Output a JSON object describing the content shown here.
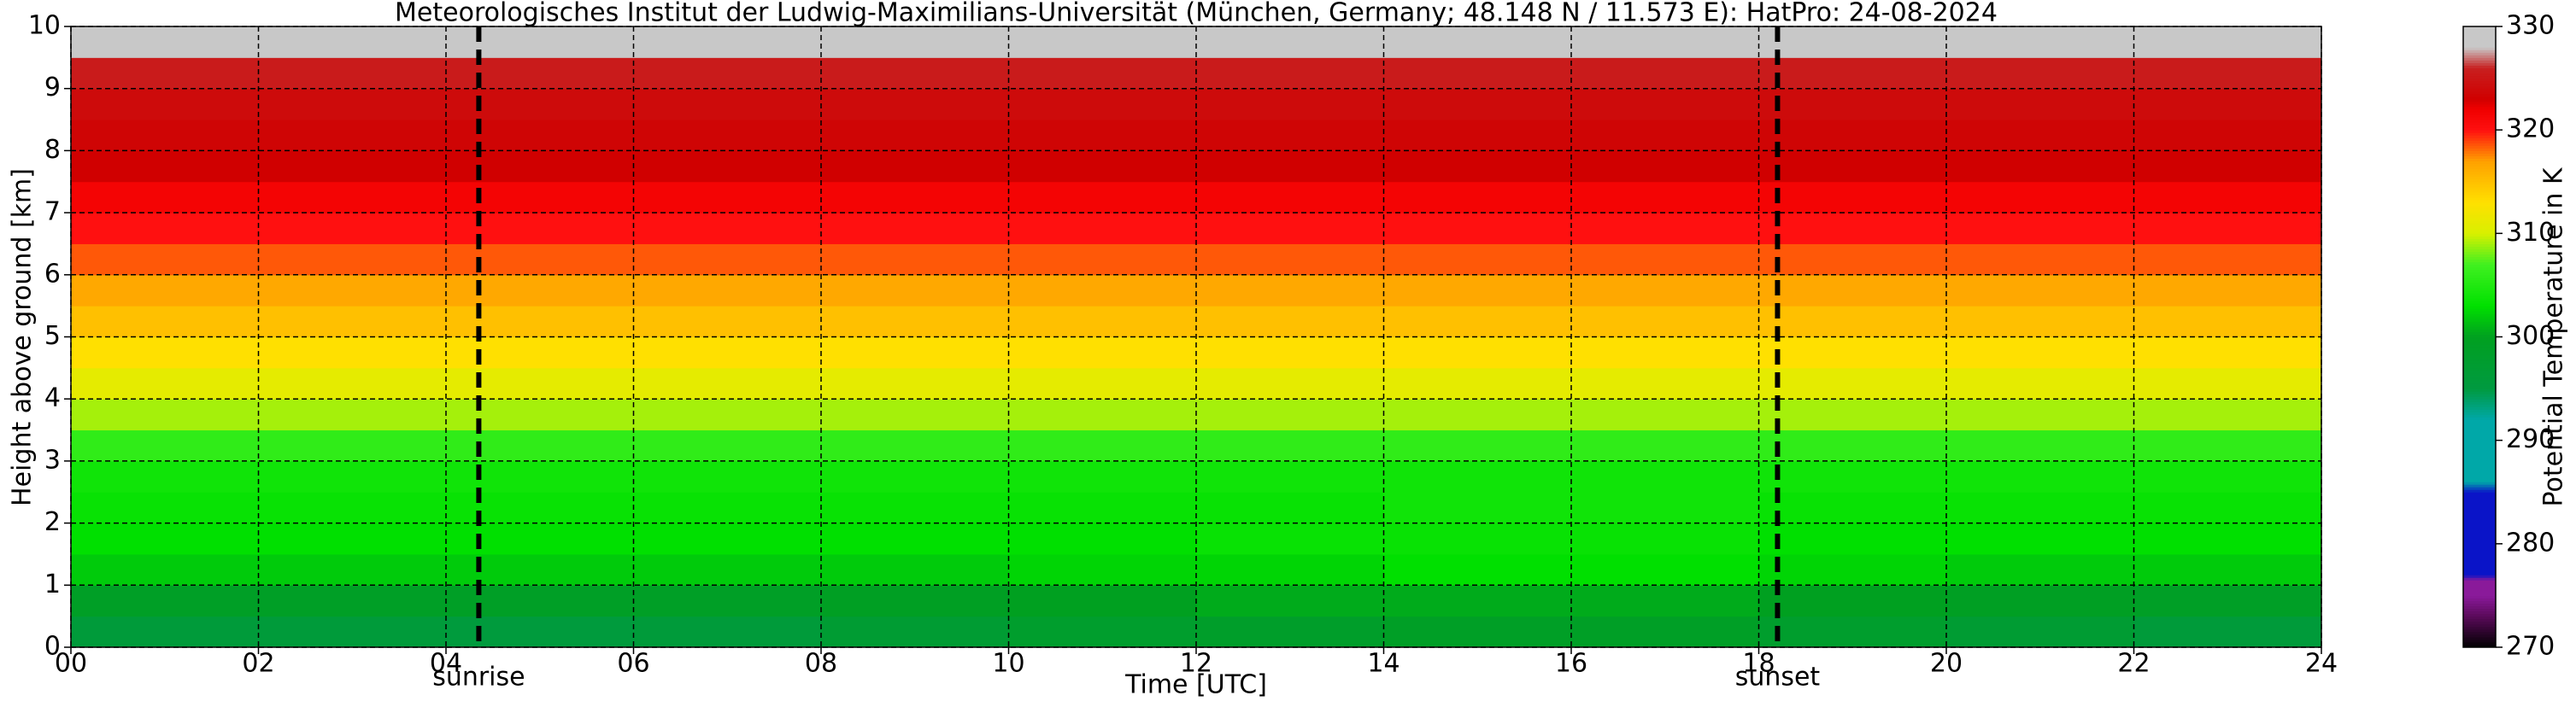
{
  "chart_data": {
    "type": "heatmap",
    "title": "Meteorologisches Institut der Ludwig-Maximilians-Universität (München, Germany; 48.148 N / 11.573 E):    HatPro: 24-08-2024",
    "x_label": "Time [UTC]",
    "y_label": "Height above ground [km]",
    "colorbar_label": "Potential Temperature in K",
    "xbins": [
      0,
      2,
      4,
      6,
      8,
      10,
      12,
      14,
      16,
      18,
      20,
      22,
      24
    ],
    "ybins": [
      0,
      0.5,
      1,
      1.5,
      2,
      2.5,
      3,
      3.5,
      4,
      4.5,
      5,
      5.5,
      6,
      6.5,
      7,
      7.5,
      8,
      8.5,
      9,
      9.5,
      10
    ],
    "z": [
      [
        296,
        296,
        295.5,
        296,
        297,
        298,
        298.5,
        299,
        299,
        298,
        297,
        296
      ],
      [
        299,
        299,
        299,
        299,
        299.5,
        300,
        300.5,
        300.5,
        300.5,
        300,
        299.5,
        299
      ],
      [
        302,
        302,
        302,
        302,
        302,
        302.5,
        302.5,
        303,
        303,
        302.5,
        302,
        302
      ],
      [
        303,
        303,
        303,
        303,
        303,
        303,
        303.5,
        303.5,
        303.5,
        303,
        303,
        303
      ],
      [
        303.5,
        303.5,
        303.5,
        303.5,
        303.5,
        303.5,
        303.5,
        304,
        304,
        303.5,
        303.5,
        303.5
      ],
      [
        304,
        304,
        304,
        304,
        304,
        304,
        304,
        304,
        304,
        304,
        304,
        304
      ],
      [
        306,
        306,
        306,
        306,
        306,
        306,
        306,
        306,
        306,
        306,
        306,
        306
      ],
      [
        309,
        309,
        309,
        309,
        309,
        309,
        309,
        309,
        309,
        309,
        309,
        309
      ],
      [
        311,
        311,
        311,
        311,
        311,
        311,
        311,
        311,
        311,
        311,
        311,
        311
      ],
      [
        313,
        313,
        313,
        313,
        313,
        313,
        313,
        313,
        313,
        313,
        313,
        313
      ],
      [
        315,
        315,
        315,
        315,
        315,
        315,
        315,
        315,
        315,
        315,
        315,
        315
      ],
      [
        316.5,
        316.5,
        316.5,
        316.5,
        316.5,
        316.5,
        316.5,
        316.5,
        316.5,
        316.5,
        316.5,
        316.5
      ],
      [
        318.5,
        318.5,
        318.5,
        318.5,
        318.5,
        318.5,
        318.5,
        318.5,
        318.5,
        318.5,
        318.5,
        318.5
      ],
      [
        320,
        320,
        320,
        320,
        320,
        320,
        320,
        320,
        320,
        320,
        320,
        320
      ],
      [
        321.5,
        321.5,
        321.5,
        321.5,
        321.5,
        321.5,
        321.5,
        321.5,
        321.5,
        321.5,
        321.5,
        321.5
      ],
      [
        323,
        323,
        323,
        323,
        323,
        323,
        323,
        323,
        323,
        323,
        323,
        323
      ],
      [
        323.5,
        323.5,
        323.5,
        323.5,
        323.5,
        323.5,
        323.5,
        323.5,
        323.5,
        323.5,
        323.5,
        323.5
      ],
      [
        324,
        324,
        324,
        324,
        324,
        324,
        324,
        324,
        324,
        324,
        324,
        324
      ],
      [
        325.5,
        325.5,
        325.5,
        325.5,
        325.5,
        325.5,
        325.5,
        325.5,
        325.5,
        325.5,
        325.5,
        325.5
      ],
      [
        328,
        328,
        328,
        328,
        328,
        328,
        328,
        328,
        328,
        328,
        328,
        328
      ]
    ],
    "xlim": [
      0,
      24
    ],
    "ylim": [
      0,
      10
    ],
    "xticks": [
      {
        "value": 0,
        "label": "00"
      },
      {
        "value": 2,
        "label": "02"
      },
      {
        "value": 4,
        "label": "04"
      },
      {
        "value": 6,
        "label": "06"
      },
      {
        "value": 8,
        "label": "08"
      },
      10,
      12,
      14,
      16,
      18,
      20,
      22,
      24
    ],
    "yticks": [
      0,
      1,
      2,
      3,
      4,
      5,
      6,
      7,
      8,
      9,
      10
    ],
    "clim": [
      270,
      330
    ],
    "cticks": [
      270,
      280,
      290,
      300,
      310,
      320,
      330
    ],
    "colorscale": [
      [
        270,
        "#000000"
      ],
      [
        273,
        "#5a0a5a"
      ],
      [
        275,
        "#8a1a9a"
      ],
      [
        276.5,
        "#8a1a9a"
      ],
      [
        277,
        "#0a14c8"
      ],
      [
        285,
        "#0a14c8"
      ],
      [
        286,
        "#00a8a8"
      ],
      [
        292,
        "#00a8a8"
      ],
      [
        295,
        "#009a40"
      ],
      [
        300,
        "#00a020"
      ],
      [
        303,
        "#00e000"
      ],
      [
        307,
        "#40f020"
      ],
      [
        310,
        "#d8f000"
      ],
      [
        313,
        "#ffe000"
      ],
      [
        317,
        "#ffa000"
      ],
      [
        320,
        "#ff1010"
      ],
      [
        322,
        "#f00000"
      ],
      [
        323,
        "#d00000"
      ],
      [
        326,
        "#c82020"
      ],
      [
        328,
        "#c8c8c8"
      ],
      [
        330,
        "#c8c8c8"
      ]
    ],
    "grid": true,
    "annotations": [
      {
        "x": 4.35,
        "label": "sunrise"
      },
      {
        "x": 18.2,
        "label": "sunset"
      }
    ]
  }
}
